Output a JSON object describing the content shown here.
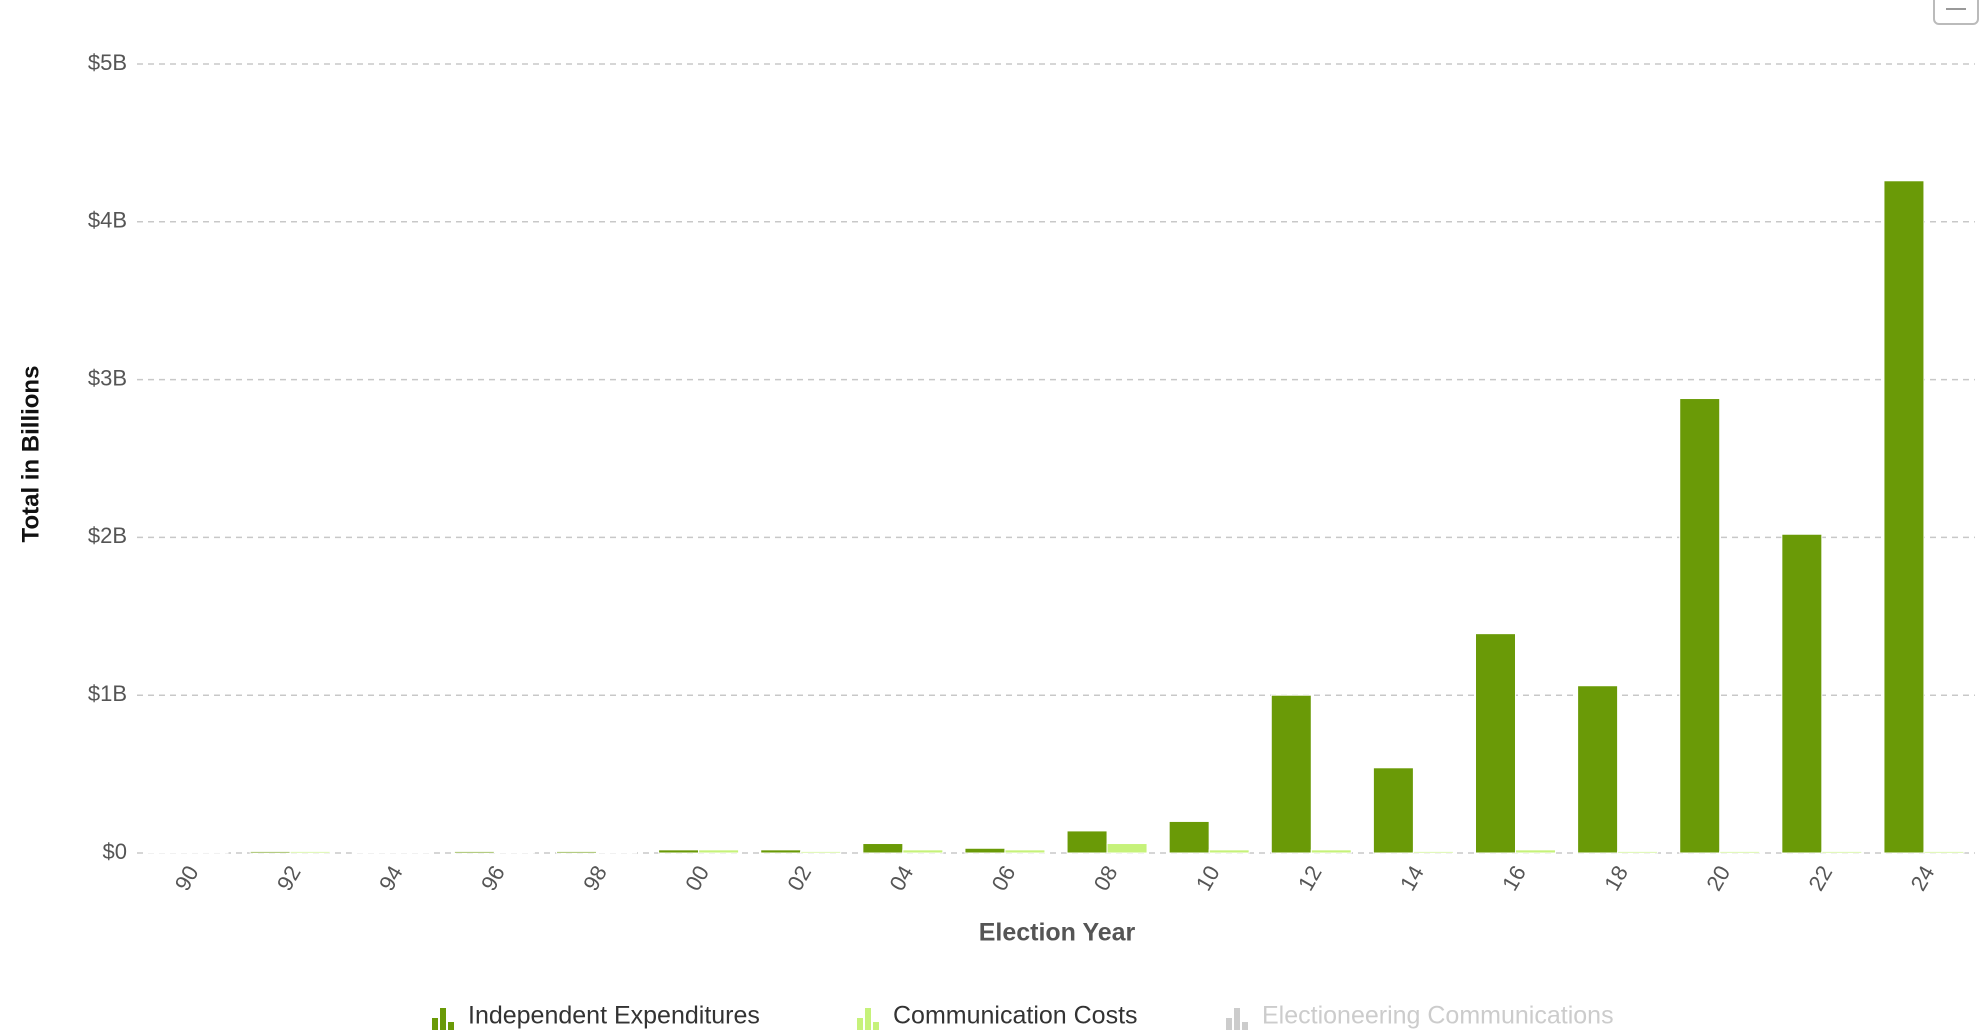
{
  "chart_data": {
    "type": "bar",
    "y_axis_title": "Total in Billions",
    "x_axis_title": "Election Year",
    "categories": [
      "90",
      "92",
      "94",
      "96",
      "98",
      "00",
      "02",
      "04",
      "06",
      "08",
      "10",
      "12",
      "14",
      "16",
      "18",
      "20",
      "22",
      "24"
    ],
    "series": [
      {
        "name": "Independent Expenditures",
        "color": "#6a9a07",
        "visible": true,
        "values": [
          0.005,
          0.01,
          0.005,
          0.01,
          0.01,
          0.02,
          0.02,
          0.06,
          0.03,
          0.14,
          0.2,
          1.0,
          0.54,
          1.39,
          1.06,
          2.88,
          2.02,
          4.26
        ]
      },
      {
        "name": "Communication Costs",
        "color": "#c6f27a",
        "visible": true,
        "values": [
          0.003,
          0.01,
          0.005,
          0.005,
          0.005,
          0.02,
          0.01,
          0.02,
          0.02,
          0.06,
          0.02,
          0.02,
          0.01,
          0.02,
          0.01,
          0.01,
          0.01,
          0.01
        ]
      },
      {
        "name": "Electioneering Communications",
        "color": "#cccccc",
        "visible": false,
        "values": [
          null,
          null,
          null,
          null,
          null,
          null,
          null,
          null,
          null,
          null,
          null,
          null,
          null,
          null,
          null,
          null,
          null,
          null
        ]
      }
    ],
    "ylim": [
      0,
      5
    ],
    "yticks": [
      {
        "value": 0,
        "label": "$0"
      },
      {
        "value": 1,
        "label": "$1B"
      },
      {
        "value": 2,
        "label": "$2B"
      },
      {
        "value": 3,
        "label": "$3B"
      },
      {
        "value": 4,
        "label": "$4B"
      },
      {
        "value": 5,
        "label": "$5B"
      }
    ],
    "grid": true
  }
}
